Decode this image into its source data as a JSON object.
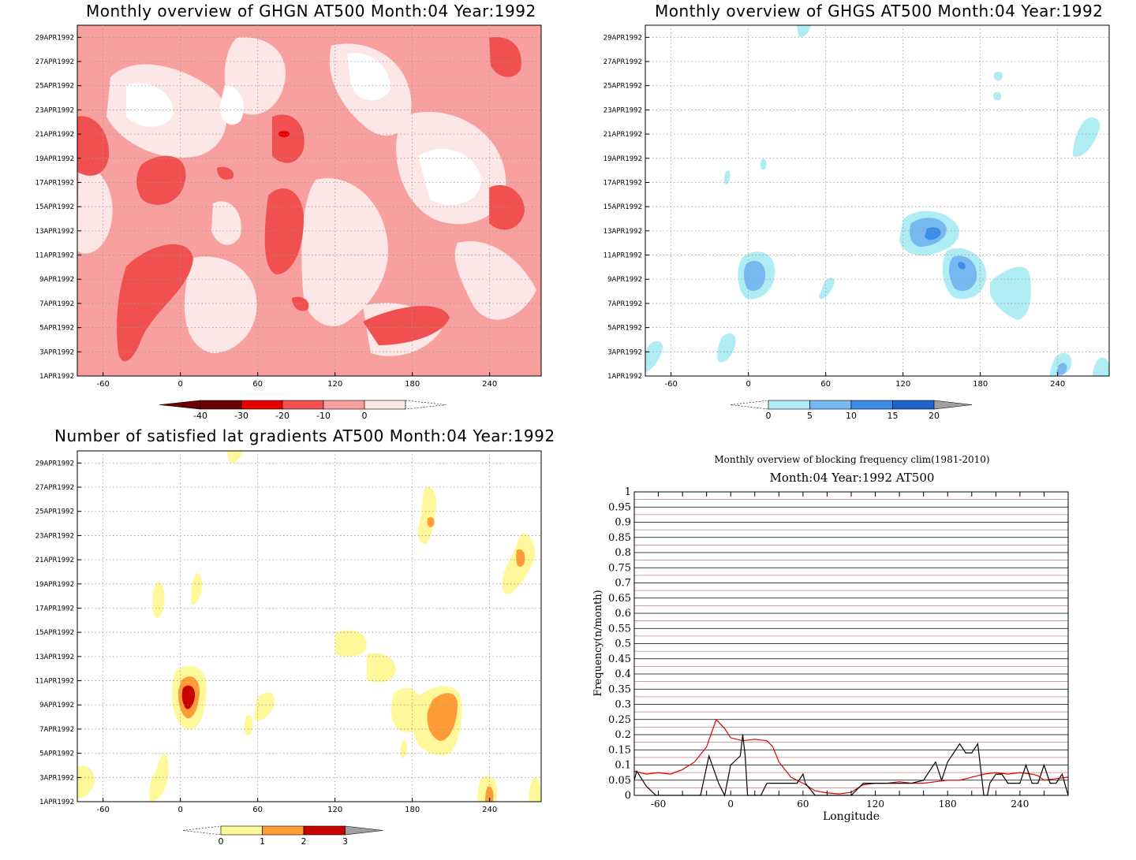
{
  "chart_data": [
    {
      "type": "heatmap",
      "title": "Monthly overview of GHGN AT500 Month:04 Year:1992",
      "x_ticks": [
        "-60",
        "0",
        "60",
        "120",
        "180",
        "240"
      ],
      "x_tick_values": [
        -60,
        0,
        60,
        120,
        180,
        240
      ],
      "xlim": [
        -80,
        280
      ],
      "y_ticks": [
        "29APR1992",
        "27APR1992",
        "25APR1992",
        "23APR1992",
        "21APR1992",
        "19APR1992",
        "17APR1992",
        "15APR1992",
        "13APR1992",
        "11APR1992",
        "9APR1992",
        "7APR1992",
        "5APR1992",
        "3APR1992",
        "1APR1992"
      ],
      "y_tick_days": [
        29,
        27,
        25,
        23,
        21,
        19,
        17,
        15,
        13,
        11,
        9,
        7,
        5,
        3,
        1
      ],
      "ylim": [
        1,
        30
      ],
      "colorbar": {
        "labels": [
          "-40",
          "-30",
          "-20",
          "-10",
          "0"
        ],
        "colors": [
          "#6b0000",
          "#e60000",
          "#f05050",
          "#f8a0a0",
          "#fde6e6"
        ],
        "left_arrow_color": "#6b0000",
        "right_arrow": "open"
      },
      "background_color": "#f8a0a0"
    },
    {
      "type": "heatmap",
      "title": "Monthly overview of GHGS AT500 Month:04 Year:1992",
      "x_ticks": [
        "-60",
        "0",
        "60",
        "120",
        "180",
        "240"
      ],
      "x_tick_values": [
        -60,
        0,
        60,
        120,
        180,
        240
      ],
      "xlim": [
        -80,
        280
      ],
      "y_ticks": [
        "29APR1992",
        "27APR1992",
        "25APR1992",
        "23APR1992",
        "21APR1992",
        "19APR1992",
        "17APR1992",
        "15APR1992",
        "13APR1992",
        "11APR1992",
        "9APR1992",
        "7APR1992",
        "5APR1992",
        "3APR1992",
        "1APR1992"
      ],
      "y_tick_days": [
        29,
        27,
        25,
        23,
        21,
        19,
        17,
        15,
        13,
        11,
        9,
        7,
        5,
        3,
        1
      ],
      "ylim": [
        1,
        30
      ],
      "colorbar": {
        "labels": [
          "0",
          "5",
          "10",
          "15",
          "20"
        ],
        "colors": [
          "#b0ecf4",
          "#78b8f0",
          "#3c8ce8",
          "#1e64c8"
        ],
        "left_arrow": "open",
        "right_arrow_color": "#a0a0a0"
      },
      "background_color": "#ffffff"
    },
    {
      "type": "heatmap",
      "title": "Number of satisfied lat gradients AT500 Month:04 Year:1992",
      "x_ticks": [
        "-60",
        "0",
        "60",
        "120",
        "180",
        "240"
      ],
      "x_tick_values": [
        -60,
        0,
        60,
        120,
        180,
        240
      ],
      "xlim": [
        -80,
        280
      ],
      "y_ticks": [
        "29APR1992",
        "27APR1992",
        "25APR1992",
        "23APR1992",
        "21APR1992",
        "19APR1992",
        "17APR1992",
        "15APR1992",
        "13APR1992",
        "11APR1992",
        "9APR1992",
        "7APR1992",
        "5APR1992",
        "3APR1992",
        "1APR1992"
      ],
      "y_tick_days": [
        29,
        27,
        25,
        23,
        21,
        19,
        17,
        15,
        13,
        11,
        9,
        7,
        5,
        3,
        1
      ],
      "ylim": [
        1,
        30
      ],
      "colorbar": {
        "labels": [
          "0",
          "1",
          "2",
          "3"
        ],
        "colors": [
          "#fff89a",
          "#ff9c36",
          "#c80000"
        ],
        "left_arrow": "open",
        "right_arrow_color": "#a0a0a0"
      },
      "background_color": "#ffffff"
    },
    {
      "type": "line",
      "title": "Monthly overview of blocking frequency clim(1981-2010)",
      "subtitle": "Month:04 Year:1992  AT500",
      "xlabel": "Longitude",
      "ylabel": "Frequency(n/month)",
      "xlim": [
        -80,
        280
      ],
      "ylim": [
        0,
        1
      ],
      "x_ticks": [
        "-60",
        "0",
        "60",
        "120",
        "180",
        "240"
      ],
      "x_tick_values": [
        -60,
        0,
        60,
        120,
        180,
        240
      ],
      "y_ticks": [
        "0",
        "0.05",
        "0.1",
        "0.15",
        "0.2",
        "0.25",
        "0.3",
        "0.35",
        "0.4",
        "0.45",
        "0.5",
        "0.55",
        "0.6",
        "0.65",
        "0.7",
        "0.75",
        "0.8",
        "0.85",
        "0.9",
        "0.95",
        "1"
      ],
      "grid": true,
      "series": [
        {
          "color": "#e00000",
          "x": [
            -80,
            -70,
            -60,
            -50,
            -40,
            -30,
            -20,
            -12,
            -5,
            0,
            10,
            20,
            30,
            35,
            40,
            50,
            60,
            70,
            80,
            90,
            100,
            110,
            120,
            130,
            140,
            150,
            160,
            170,
            180,
            190,
            200,
            210,
            220,
            230,
            240,
            250,
            255,
            260,
            270,
            280
          ],
          "y": [
            0.08,
            0.07,
            0.075,
            0.07,
            0.085,
            0.11,
            0.16,
            0.25,
            0.22,
            0.19,
            0.18,
            0.185,
            0.18,
            0.16,
            0.11,
            0.06,
            0.04,
            0.015,
            0.008,
            0.005,
            0.01,
            0.035,
            0.04,
            0.04,
            0.045,
            0.04,
            0.04,
            0.045,
            0.05,
            0.05,
            0.06,
            0.07,
            0.075,
            0.07,
            0.075,
            0.07,
            0.065,
            0.05,
            0.055,
            0.06
          ]
        },
        {
          "color": "#000000",
          "x": [
            -80,
            -78,
            -70,
            -62,
            -55,
            -40,
            -25,
            -18,
            -10,
            -5,
            0,
            8,
            10,
            12,
            14,
            18,
            25,
            30,
            40,
            55,
            60,
            62,
            70,
            100,
            110,
            130,
            150,
            160,
            170,
            175,
            180,
            185,
            190,
            195,
            200,
            205,
            210,
            213,
            215,
            220,
            225,
            230,
            240,
            245,
            250,
            255,
            260,
            265,
            270,
            275,
            280
          ],
          "y": [
            0.05,
            0.08,
            0.03,
            0.0,
            0.0,
            0.0,
            0.0,
            0.13,
            0.04,
            0.0,
            0.1,
            0.13,
            0.2,
            0.13,
            0.0,
            0.0,
            0.0,
            0.04,
            0.04,
            0.04,
            0.07,
            0.04,
            0.0,
            0.0,
            0.04,
            0.04,
            0.04,
            0.05,
            0.11,
            0.05,
            0.11,
            0.14,
            0.17,
            0.14,
            0.14,
            0.17,
            0.0,
            0.0,
            0.04,
            0.07,
            0.07,
            0.04,
            0.04,
            0.1,
            0.04,
            0.04,
            0.1,
            0.04,
            0.04,
            0.07,
            0.0
          ]
        }
      ]
    }
  ]
}
